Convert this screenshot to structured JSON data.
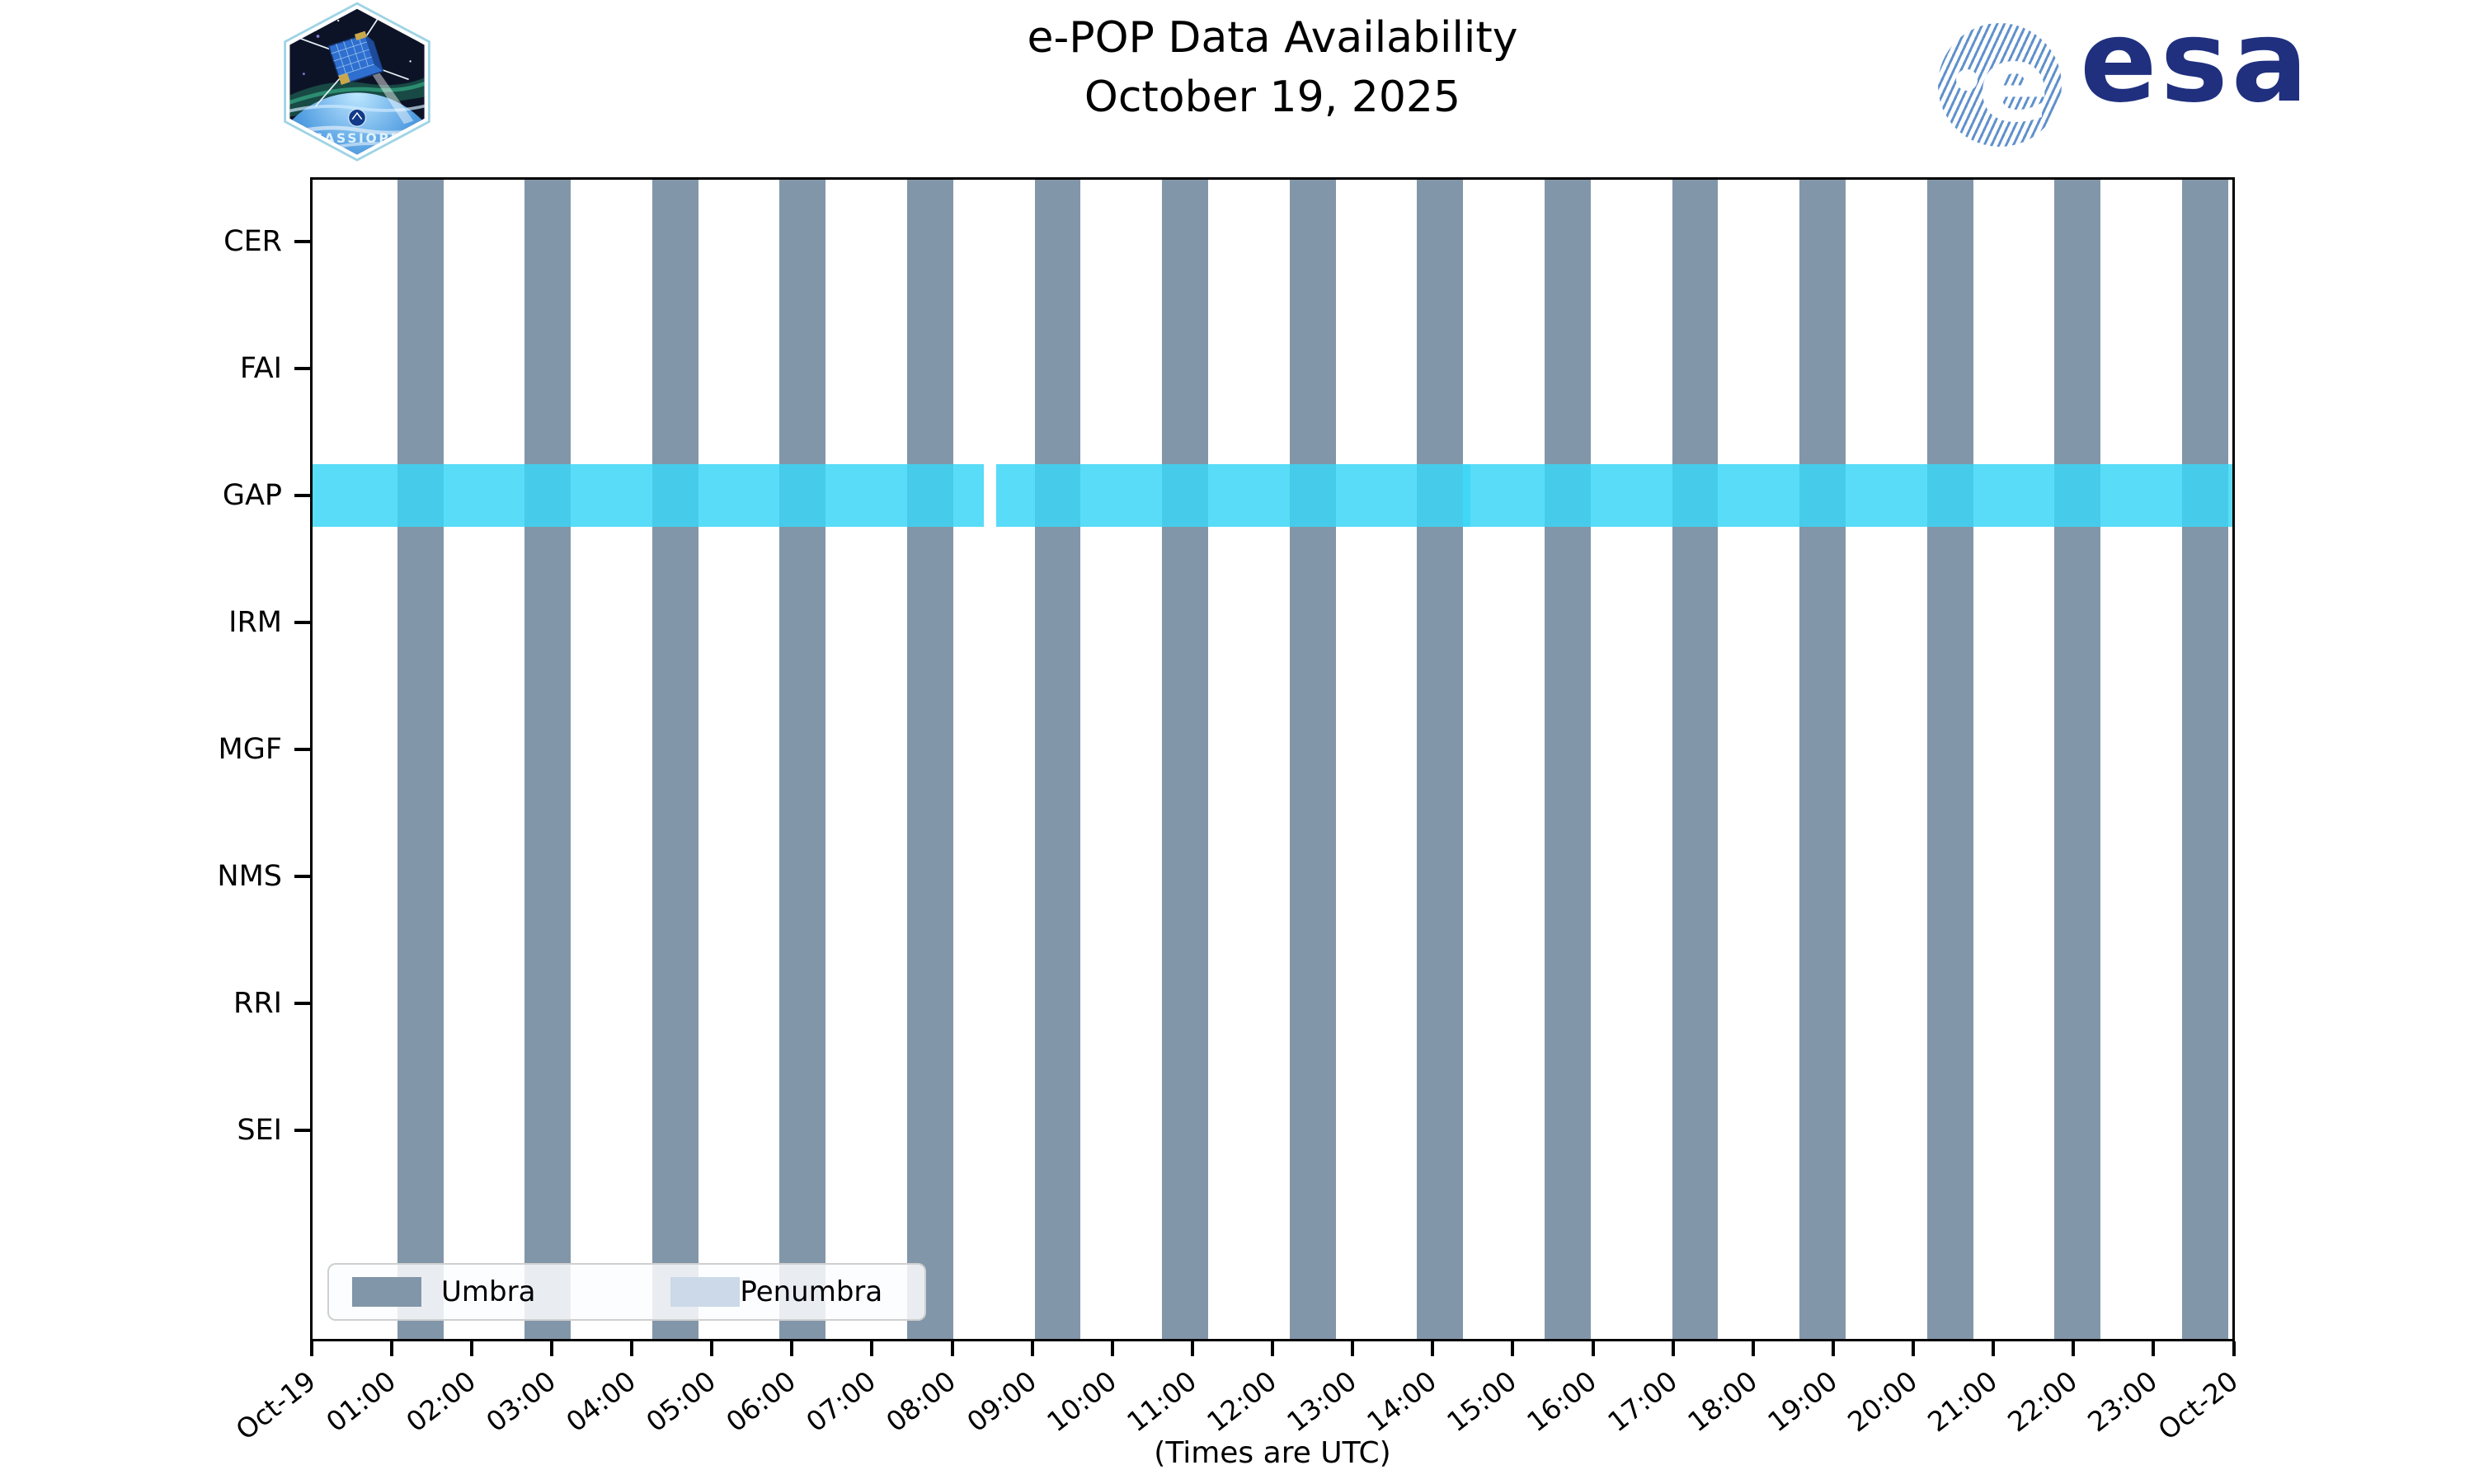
{
  "header": {
    "title_line1": "e-POP Data Availability",
    "title_line2": "October 19, 2025",
    "cassiope_badge_text": "CASSIOPE",
    "esa_logo_text": "esa",
    "esa_logo_e": "e"
  },
  "chart_data": {
    "type": "availability-timeline",
    "title": "e-POP Data Availability",
    "subtitle": "October 19, 2025",
    "xlabel": "(Times are UTC)",
    "x_range_hours": [
      0,
      24
    ],
    "x_tick_labels": [
      "Oct-19",
      "01:00",
      "02:00",
      "03:00",
      "04:00",
      "05:00",
      "06:00",
      "07:00",
      "08:00",
      "09:00",
      "10:00",
      "11:00",
      "12:00",
      "13:00",
      "14:00",
      "15:00",
      "16:00",
      "17:00",
      "18:00",
      "19:00",
      "20:00",
      "21:00",
      "22:00",
      "23:00",
      "Oct-20"
    ],
    "instruments": [
      "CER",
      "FAI",
      "GAP",
      "IRM",
      "MGF",
      "NMS",
      "RRI",
      "SEI"
    ],
    "availability_segments_hours": {
      "CER": [],
      "FAI": [],
      "GAP": [
        [
          0.0,
          8.395
        ],
        [
          8.549,
          14.478
        ],
        [
          14.384,
          24.0
        ]
      ],
      "IRM": [],
      "MGF": [],
      "NMS": [],
      "RRI": [],
      "SEI": []
    },
    "umbra_intervals_hours": [
      [
        1.06,
        1.636
      ],
      [
        2.653,
        3.229
      ],
      [
        4.247,
        4.823
      ],
      [
        5.84,
        6.416
      ],
      [
        7.434,
        8.01
      ],
      [
        9.027,
        9.603
      ],
      [
        10.621,
        11.197
      ],
      [
        12.214,
        12.79
      ],
      [
        13.808,
        14.384
      ],
      [
        15.401,
        15.977
      ],
      [
        16.995,
        17.571
      ],
      [
        18.588,
        19.164
      ],
      [
        20.182,
        20.758
      ],
      [
        21.775,
        22.351
      ],
      [
        23.369,
        23.945
      ]
    ],
    "colors": {
      "umbra": "#8296A9",
      "penumbra": "#CBD9E8",
      "availability_band": "rgba(60,214,246,0.85)",
      "axis": "#000000"
    },
    "legend": {
      "position": "lower-left",
      "items": [
        {
          "label": "Umbra",
          "color": "#8296A9"
        },
        {
          "label": "Penumbra",
          "color": "#CBD9E8"
        }
      ]
    }
  }
}
